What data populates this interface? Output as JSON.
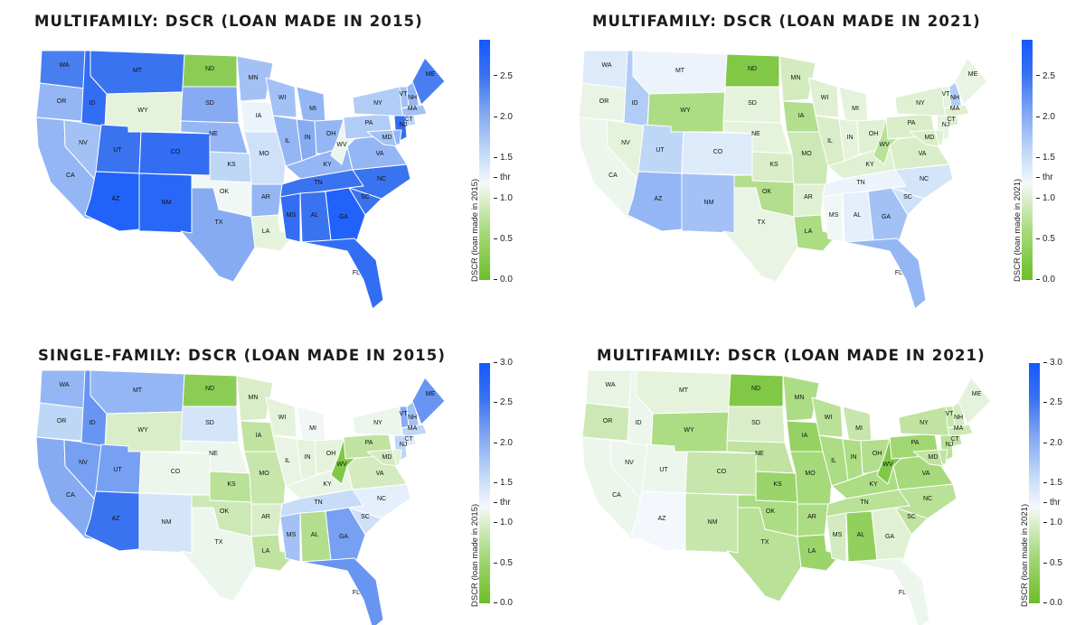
{
  "figure": {
    "panels": [
      {
        "title": "MULTIFAMILY: DSCR (LOAN MADE IN 2015)",
        "colorbar_label": "DSCR (loan made in 2015)",
        "colorbar_ticks": [
          "0.0",
          "0.5",
          "1.0",
          "thr",
          "1.5",
          "2.0",
          "2.5"
        ],
        "colorbar_tick_values": [
          0.0,
          0.5,
          1.0,
          1.25,
          1.5,
          2.0,
          2.5
        ],
        "colorbar_range": [
          0.0,
          2.95
        ],
        "values": {
          "WA": 2.4,
          "OR": 1.9,
          "CA": 1.9,
          "NV": 1.8,
          "ID": 2.6,
          "MT": 2.5,
          "WY": 1.05,
          "UT": 2.5,
          "CO": 2.6,
          "AZ": 2.8,
          "NM": 2.7,
          "ND": 0.3,
          "SD": 2.0,
          "NE": 1.9,
          "KS": 1.6,
          "OK": 1.2,
          "TX": 2.0,
          "MN": 1.8,
          "IA": 1.3,
          "MO": 1.5,
          "AR": 1.9,
          "LA": 1.05,
          "WI": 1.8,
          "IL": 1.9,
          "MI": 1.9,
          "IN": 2.0,
          "OH": 1.9,
          "KY": 1.9,
          "TN": 2.5,
          "MS": 2.6,
          "AL": 2.5,
          "GA": 2.8,
          "FL": 2.6,
          "SC": 2.5,
          "NC": 2.5,
          "VA": 1.9,
          "WV": 1.15,
          "PA": 1.7,
          "NY": 1.7,
          "VT": 1.8,
          "NH": 1.9,
          "ME": 2.4,
          "MA": 1.8,
          "CT": 1.6,
          "NJ": 2.6,
          "DE": 1.9,
          "MD": 1.8
        }
      },
      {
        "title": "MULTIFAMILY: DSCR (LOAN MADE IN 2021)",
        "colorbar_label": "DSCR (loan made in 2021)",
        "colorbar_ticks": [
          "0.0",
          "0.5",
          "1.0",
          "thr",
          "1.5",
          "2.0",
          "2.5"
        ],
        "colorbar_tick_values": [
          0.0,
          0.5,
          1.0,
          1.25,
          1.5,
          2.0,
          2.5
        ],
        "colorbar_range": [
          0.0,
          2.95
        ],
        "values": {
          "WA": 1.4,
          "OR": 1.1,
          "CA": 1.15,
          "NV": 1.05,
          "ID": 1.7,
          "MT": 1.3,
          "WY": 0.6,
          "UT": 1.6,
          "CO": 1.4,
          "AZ": 1.9,
          "NM": 1.8,
          "ND": 0.2,
          "SD": 1.05,
          "NE": 1.05,
          "KS": 0.95,
          "OK": 0.65,
          "TX": 1.1,
          "MN": 0.9,
          "IA": 0.65,
          "MO": 0.85,
          "AR": 1.0,
          "LA": 0.6,
          "WI": 1.0,
          "IL": 0.95,
          "MI": 1.05,
          "IN": 1.05,
          "OH": 1.0,
          "KY": 1.0,
          "TN": 1.3,
          "MS": 1.2,
          "AL": 1.35,
          "GA": 1.8,
          "FL": 1.9,
          "SC": 1.5,
          "NC": 1.45,
          "VA": 0.95,
          "WV": 0.7,
          "PA": 0.95,
          "NY": 1.0,
          "VT": 1.05,
          "NH": 1.7,
          "ME": 1.1,
          "MA": 1.0,
          "CT": 0.95,
          "NJ": 1.05,
          "DE": 1.0,
          "MD": 0.95
        }
      },
      {
        "title": "SINGLE-FAMILY: DSCR (LOAN MADE IN 2015)",
        "colorbar_label": "DSCR (loan made in 2015)",
        "colorbar_ticks": [
          "0.0",
          "0.5",
          "1.0",
          "thr",
          "1.5",
          "2.0",
          "2.5",
          "3.0"
        ],
        "colorbar_tick_values": [
          0.0,
          0.5,
          1.0,
          1.25,
          1.5,
          2.0,
          2.5,
          3.0
        ],
        "colorbar_range": [
          0.0,
          3.0
        ],
        "values": {
          "WA": 1.9,
          "OR": 1.6,
          "CA": 2.0,
          "NV": 2.1,
          "ID": 2.2,
          "MT": 1.9,
          "WY": 0.95,
          "UT": 2.1,
          "CO": 1.15,
          "AZ": 2.5,
          "NM": 1.45,
          "ND": 0.3,
          "SD": 1.45,
          "NE": 1.15,
          "KS": 0.7,
          "OK": 0.85,
          "TX": 1.15,
          "MN": 0.95,
          "IA": 0.75,
          "MO": 0.8,
          "AR": 0.95,
          "LA": 0.75,
          "WI": 1.05,
          "IL": 1.1,
          "MI": 1.2,
          "IN": 1.05,
          "OH": 1.05,
          "KY": 1.1,
          "TN": 1.55,
          "MS": 1.8,
          "AL": 0.65,
          "GA": 2.1,
          "FL": 2.2,
          "SC": 1.5,
          "NC": 1.35,
          "VA": 0.9,
          "WV": 0.2,
          "PA": 0.75,
          "NY": 1.15,
          "VT": 2.0,
          "NH": 1.8,
          "ME": 2.2,
          "MA": 1.6,
          "CT": 1.4,
          "NJ": 1.6,
          "DE": 1.0,
          "MD": 0.9
        }
      },
      {
        "title": "MULTIFAMILY: DSCR (LOAN MADE IN 2021)",
        "colorbar_label": "DSCR (loan made in 2021)",
        "colorbar_ticks": [
          "0.0",
          "0.5",
          "1.0",
          "thr",
          "1.5",
          "2.0",
          "2.5",
          "3.0"
        ],
        "colorbar_tick_values": [
          0.0,
          0.5,
          1.0,
          1.25,
          1.5,
          2.0,
          2.5,
          3.0
        ],
        "colorbar_range": [
          0.0,
          3.0
        ],
        "values": {
          "WA": 1.1,
          "OR": 0.85,
          "CA": 1.15,
          "NV": 1.15,
          "ID": 1.15,
          "MT": 1.05,
          "WY": 0.6,
          "UT": 1.15,
          "CO": 0.8,
          "AZ": 1.25,
          "NM": 0.8,
          "ND": 0.2,
          "SD": 0.95,
          "NE": 0.75,
          "KS": 0.45,
          "OK": 0.6,
          "TX": 0.7,
          "MN": 0.6,
          "IA": 0.4,
          "MO": 0.55,
          "AR": 0.6,
          "LA": 0.45,
          "WI": 0.7,
          "IL": 0.6,
          "MI": 0.8,
          "IN": 0.6,
          "OH": 0.65,
          "KY": 0.6,
          "TN": 0.7,
          "MS": 0.9,
          "AL": 0.35,
          "GA": 1.0,
          "FL": 1.15,
          "SC": 0.75,
          "NC": 0.7,
          "VA": 0.55,
          "WV": 0.2,
          "PA": 0.5,
          "NY": 0.75,
          "VT": 0.8,
          "NH": 0.9,
          "ME": 1.05,
          "MA": 0.85,
          "CT": 0.75,
          "NJ": 0.7,
          "DE": 0.75,
          "MD": 0.75
        }
      }
    ]
  }
}
